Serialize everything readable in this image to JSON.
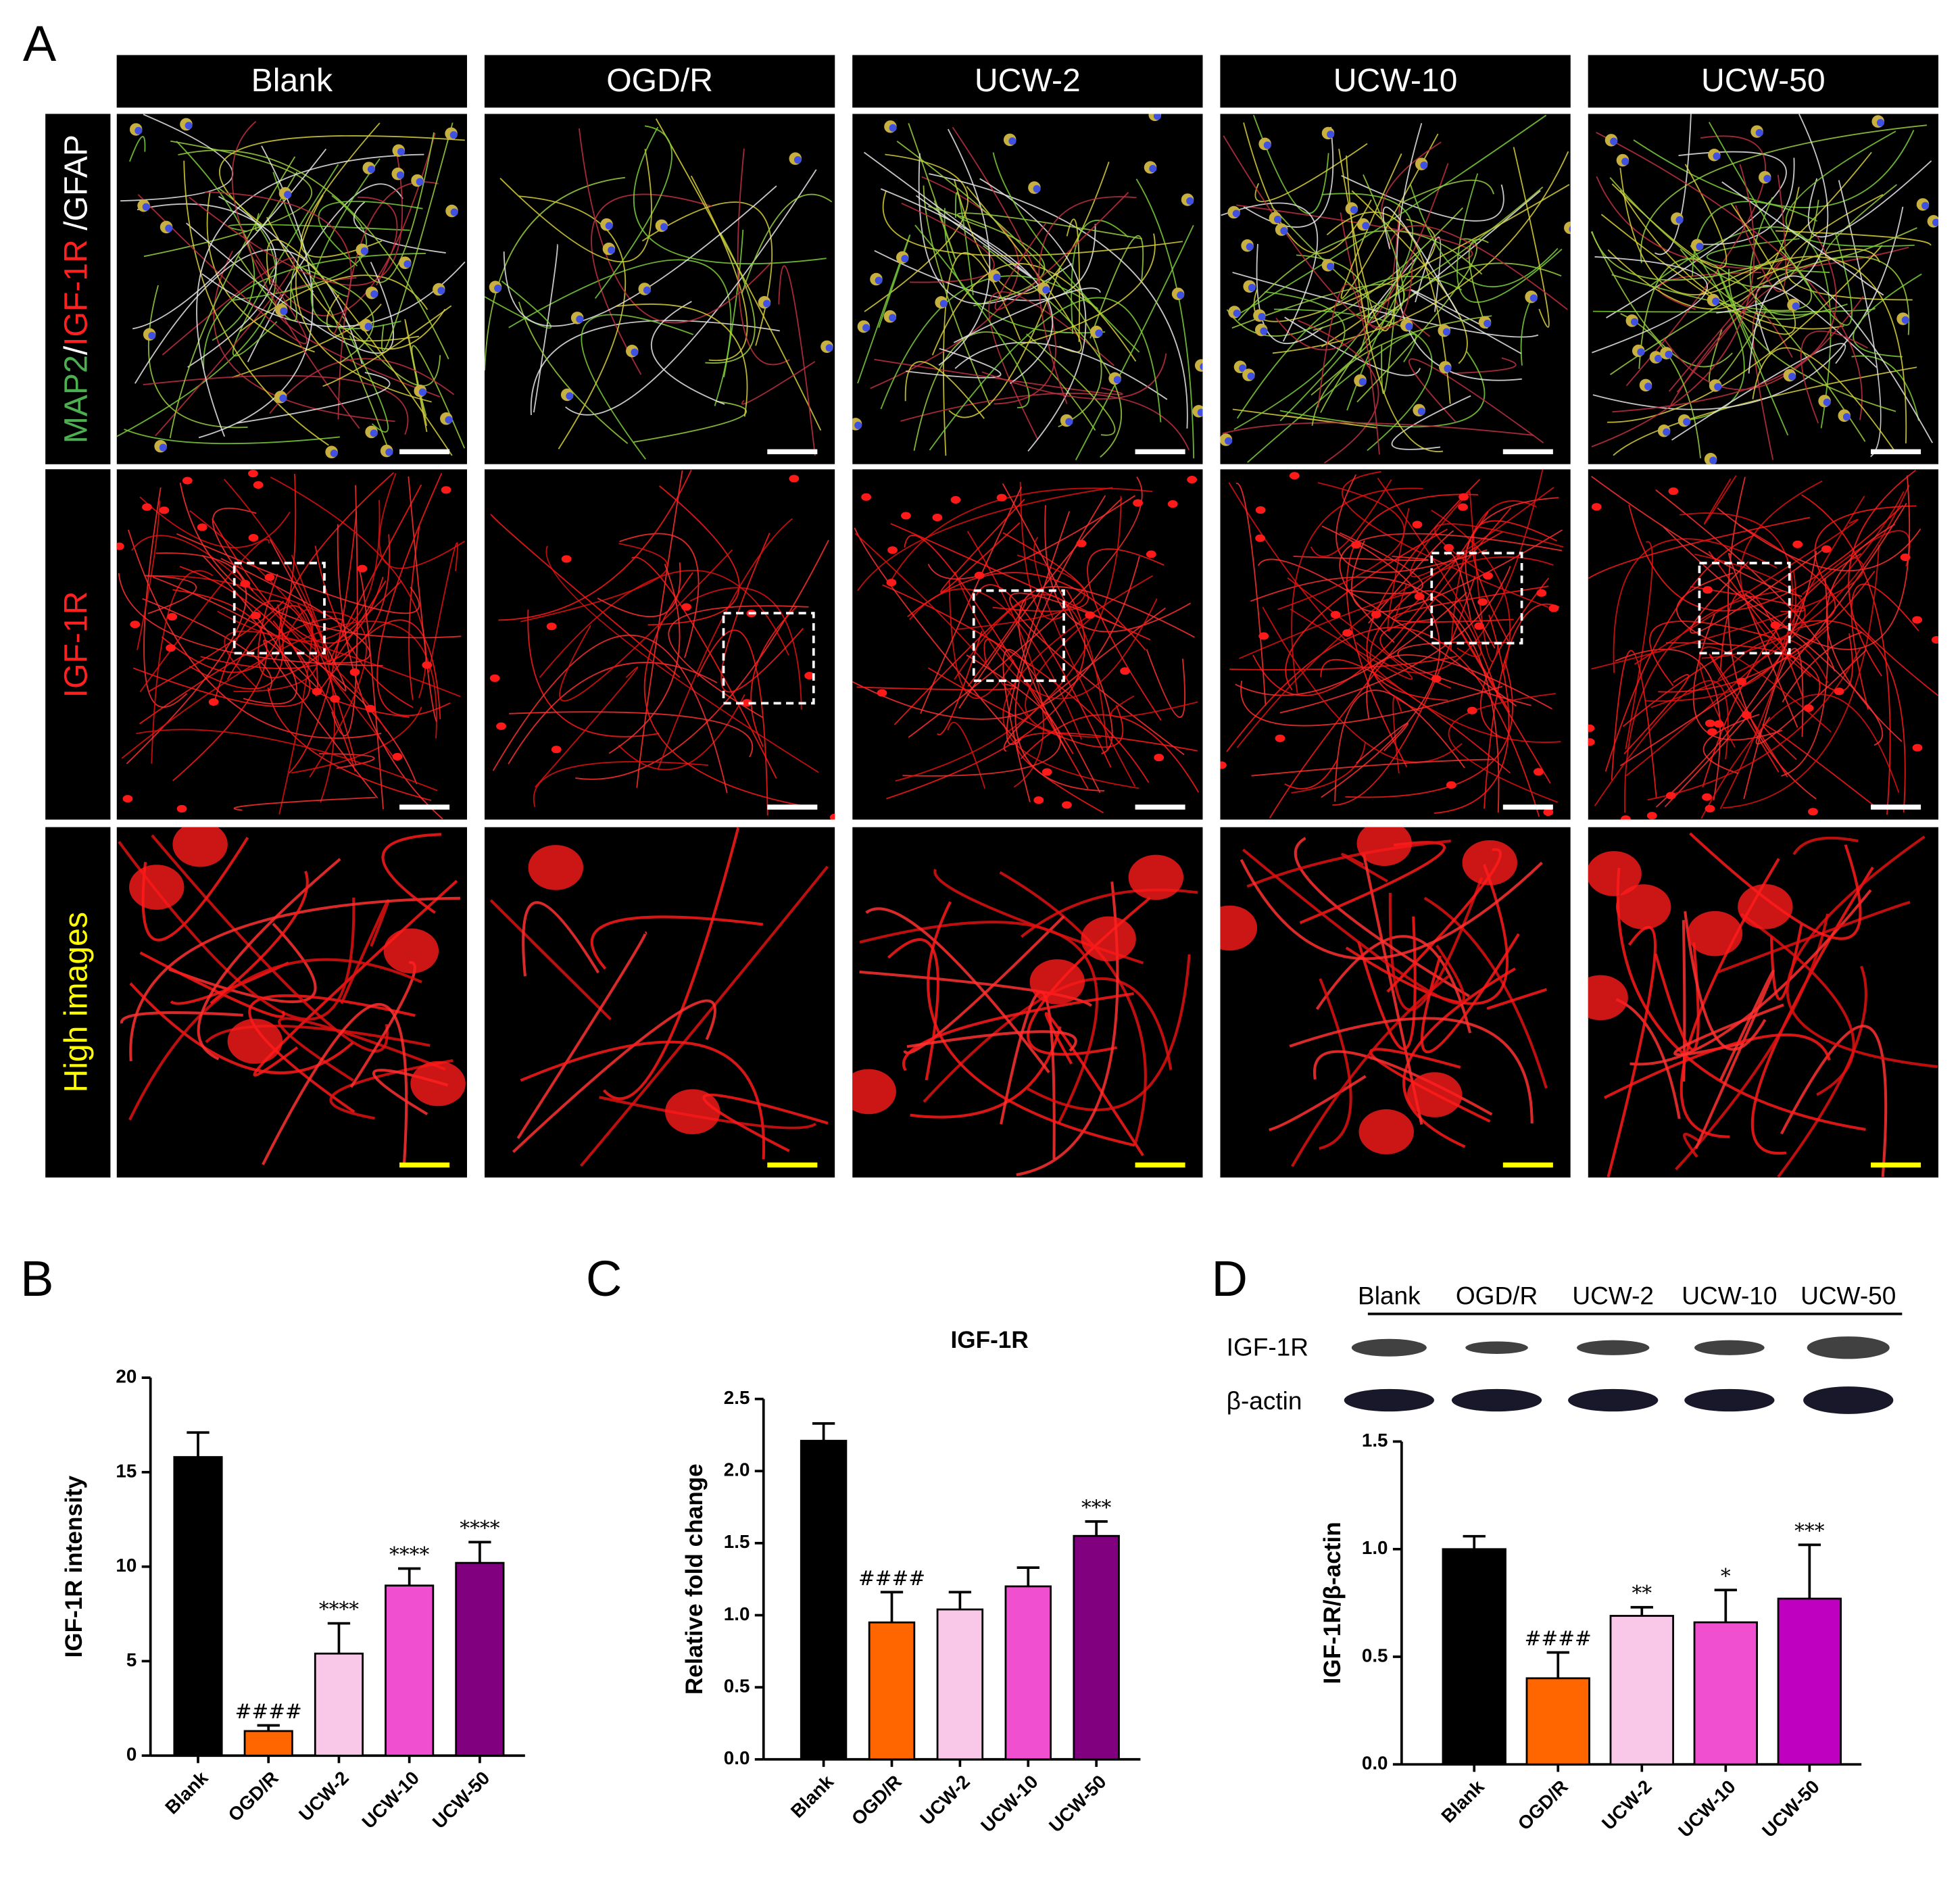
{
  "panel_labels": [
    "A",
    "B",
    "C",
    "D"
  ],
  "panel_a": {
    "columns": [
      "Blank",
      "OGD/R",
      "UCW-2",
      "UCW-10",
      "UCW-50"
    ],
    "row_labels": [
      {
        "parts": [
          {
            "text": "MAP2",
            "color": "#4caf50"
          },
          {
            "text": "/",
            "color": "#ffffff"
          },
          {
            "text": "IGF-1R",
            "color": "#ff2020"
          },
          {
            "text": " /GFAP",
            "color": "#ffffff"
          }
        ]
      },
      {
        "parts": [
          {
            "text": "IGF-1R",
            "color": "#ff2020"
          }
        ]
      },
      {
        "parts": [
          {
            "text": "High images",
            "color": "#ffff00"
          }
        ]
      }
    ]
  },
  "blot": {
    "lanes": [
      "Blank",
      "OGD/R",
      "UCW-2",
      "UCW-10",
      "UCW-50"
    ],
    "rows": [
      "IGF-1R",
      "β-actin"
    ]
  },
  "chart_data": [
    {
      "type": "bar",
      "ylabel": "IGF-1R intensity",
      "categories": [
        "Blank",
        "OGD/R",
        "UCW-2",
        "UCW-10",
        "UCW-50"
      ],
      "values": [
        15.8,
        1.3,
        5.4,
        9.0,
        10.2
      ],
      "errors": [
        1.3,
        0.3,
        1.6,
        0.9,
        1.1
      ],
      "colors": [
        "#000000",
        "#ff6600",
        "#f9c8e8",
        "#f050d0",
        "#800080"
      ],
      "annotations": [
        null,
        "####",
        "****",
        "****",
        "****"
      ],
      "ylim": [
        0,
        20
      ],
      "yticks": [
        0,
        5,
        10,
        15,
        20
      ]
    },
    {
      "type": "bar",
      "title": "IGF-1R",
      "ylabel": "Relative fold change",
      "categories": [
        "Blank",
        "OGD/R",
        "UCW-2",
        "UCW-10",
        "UCW-50"
      ],
      "values": [
        2.21,
        0.95,
        1.04,
        1.2,
        1.55
      ],
      "errors": [
        0.12,
        0.21,
        0.12,
        0.13,
        0.1
      ],
      "colors": [
        "#000000",
        "#ff6600",
        "#f9c8e8",
        "#f050d0",
        "#800080"
      ],
      "annotations": [
        null,
        "####",
        null,
        null,
        "***"
      ],
      "ylim": [
        0,
        2.5
      ],
      "yticks": [
        {
          "value": 0,
          "label": "0.0"
        },
        0.5,
        {
          "value": 1,
          "label": "1.0"
        },
        1.5,
        {
          "value": 2,
          "label": "2.0"
        },
        2.5
      ]
    },
    {
      "type": "bar",
      "ylabel": "IGF-1R/β-actin",
      "categories": [
        "Blank",
        "OGD/R",
        "UCW-2",
        "UCW-10",
        "UCW-50"
      ],
      "values": [
        1.0,
        0.4,
        0.69,
        0.66,
        0.77
      ],
      "errors": [
        0.06,
        0.12,
        0.04,
        0.15,
        0.25
      ],
      "colors": [
        "#000000",
        "#ff6600",
        "#f9c8e8",
        "#f050d0",
        "#c000c0"
      ],
      "annotations": [
        null,
        "####",
        "**",
        "*",
        "***"
      ],
      "ylim": [
        0,
        1.5
      ],
      "yticks": [
        {
          "value": 0,
          "label": "0.0"
        },
        0.5,
        {
          "value": 1,
          "label": "1.0"
        },
        1.5
      ]
    }
  ]
}
